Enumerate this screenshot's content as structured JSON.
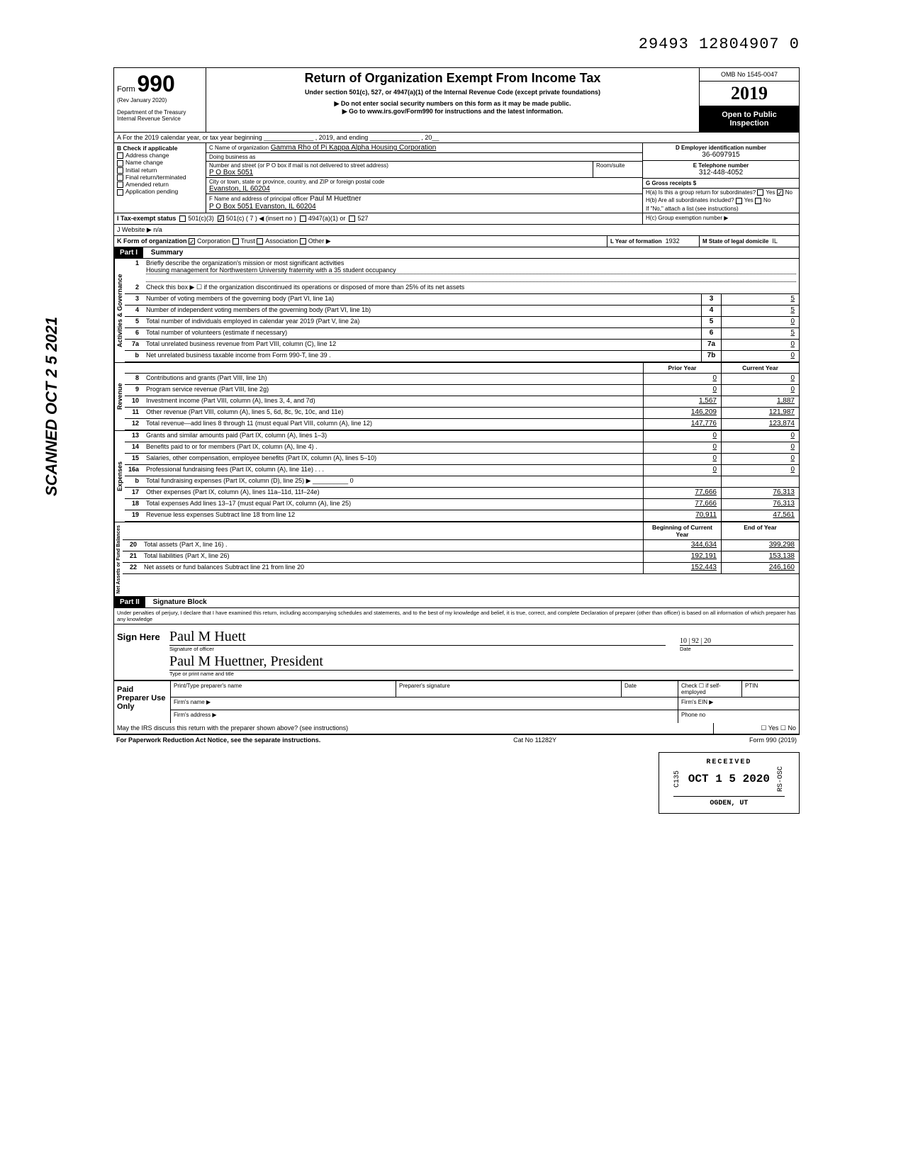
{
  "top_stamp": "29493 12804907  0",
  "scanned": "SCANNED OCT 2 5 2021",
  "header": {
    "form_word": "Form",
    "form_num": "990",
    "rev": "(Rev  January 2020)",
    "dept": "Department of the Treasury",
    "irs": "Internal Revenue Service",
    "title": "Return of Organization Exempt From Income Tax",
    "sub1": "Under section 501(c), 527, or 4947(a)(1) of the Internal Revenue Code (except private foundations)",
    "sub2": "▶ Do not enter social security numbers on this form as it may be made public.",
    "sub3": "▶ Go to www.irs.gov/Form990 for instructions and the latest information.",
    "omb": "OMB No 1545-0047",
    "year": "2019",
    "open": "Open to Public Inspection"
  },
  "lineA": "A   For the 2019 calendar year, or tax year beginning ______________ , 2019, and ending ______________ , 20__",
  "boxB": {
    "label": "B   Check if applicable",
    "items": [
      "Address change",
      "Name change",
      "Initial return",
      "Final return/terminated",
      "Amended return",
      "Application pending"
    ]
  },
  "boxC": {
    "c_lbl": "C Name of organization",
    "c_val": "Gamma Rho of Pi Kappa Alpha Housing Corporation",
    "dba_lbl": "Doing business as",
    "street_lbl": "Number and street (or P O  box if mail is not delivered to street address)",
    "street_val": "P O  Box 5051",
    "room_lbl": "Room/suite",
    "city_lbl": "City or town, state or province, country, and ZIP or foreign postal code",
    "city_val": "Evanston, IL 60204",
    "f_lbl": "F Name and address of principal officer",
    "f_name": "Paul M Huettner",
    "f_addr": "P O  Box 5051 Evanston, IL 60204"
  },
  "boxD": {
    "lbl": "D Employer identification number",
    "val": "36-6097915"
  },
  "boxE": {
    "lbl": "E Telephone number",
    "val": "312-448-4052"
  },
  "boxG": {
    "lbl": "G Gross receipts $",
    "val": ""
  },
  "boxH": {
    "a": "H(a) Is this a group return for subordinates?",
    "b": "H(b) Are all subordinates included?",
    "b2": "If \"No,\" attach a list (see instructions)",
    "c": "H(c) Group exemption number ▶"
  },
  "lineI": {
    "lbl": "I       Tax-exempt status",
    "opts": [
      "501(c)(3)",
      "501(c) (   7   ) ◀ (insert no )",
      "4947(a)(1) or",
      "527"
    ]
  },
  "lineJ": "J       Website ▶  n/a",
  "lineK": {
    "lbl": "K    Form of organization",
    "opts": [
      "Corporation",
      "Trust",
      "Association",
      "Other ▶"
    ],
    "l_lbl": "L Year of formation",
    "l_val": "1932",
    "m_lbl": "M State of legal domicile",
    "m_val": "IL"
  },
  "part1": {
    "hdr": "Part I",
    "title": "Summary",
    "activities_label": "Activities & Governance",
    "revenue_label": "Revenue",
    "expenses_label": "Expenses",
    "netassets_label": "Net Assets or Fund Balances",
    "line1_lbl": "Briefly describe the organization's mission or most significant activities",
    "line1_val": "Housing management for Northwestern University fraternity with a 35 student occupancy",
    "line2": "Check this box ▶ ☐ if the organization discontinued its operations or disposed of more than 25% of its net assets",
    "rows_gov": [
      {
        "n": "3",
        "t": "Number of voting members of the governing body (Part VI, line 1a)",
        "box": "3",
        "v": "5"
      },
      {
        "n": "4",
        "t": "Number of independent voting members of the governing body (Part VI, line 1b)",
        "box": "4",
        "v": "5"
      },
      {
        "n": "5",
        "t": "Total number of individuals employed in calendar year 2019 (Part V, line 2a)",
        "box": "5",
        "v": "0"
      },
      {
        "n": "6",
        "t": "Total number of volunteers (estimate if necessary)",
        "box": "6",
        "v": "5"
      },
      {
        "n": "7a",
        "t": "Total unrelated business revenue from Part VIII, column (C), line 12",
        "box": "7a",
        "v": "0"
      },
      {
        "n": "b",
        "t": "Net unrelated business taxable income from Form 990-T, line 39  .",
        "box": "7b",
        "v": "0"
      }
    ],
    "col_prior": "Prior Year",
    "col_current": "Current Year",
    "rows_rev": [
      {
        "n": "8",
        "t": "Contributions and grants (Part VIII, line 1h)",
        "p": "0",
        "c": "0"
      },
      {
        "n": "9",
        "t": "Program service revenue (Part VIII, line 2g)",
        "p": "0",
        "c": "0"
      },
      {
        "n": "10",
        "t": "Investment income (Part VIII, column (A), lines 3, 4, and 7d)",
        "p": "1,567",
        "c": "1,887"
      },
      {
        "n": "11",
        "t": "Other revenue (Part VIII, column (A), lines 5, 6d, 8c, 9c, 10c, and 11e)",
        "p": "146,209",
        "c": "121,987"
      },
      {
        "n": "12",
        "t": "Total revenue—add lines 8 through 11 (must equal Part VIII, column (A), line 12)",
        "p": "147,776",
        "c": "123,874"
      }
    ],
    "rows_exp": [
      {
        "n": "13",
        "t": "Grants and similar amounts paid (Part IX, column (A), lines 1–3)",
        "p": "0",
        "c": "0"
      },
      {
        "n": "14",
        "t": "Benefits paid to or for members (Part IX, column (A), line 4)  .",
        "p": "0",
        "c": "0"
      },
      {
        "n": "15",
        "t": "Salaries, other compensation, employee benefits (Part IX, column (A), lines 5–10)",
        "p": "0",
        "c": "0"
      },
      {
        "n": "16a",
        "t": "Professional fundraising fees (Part IX, column (A),  line 11e)  .   .   .",
        "p": "0",
        "c": "0"
      },
      {
        "n": "b",
        "t": "Total fundraising expenses (Part IX, column (D), line 25) ▶  __________ 0",
        "p": "",
        "c": ""
      },
      {
        "n": "17",
        "t": "Other expenses (Part IX, column (A), lines 11a–11d, 11f–24e)",
        "p": "77,666",
        "c": "76,313"
      },
      {
        "n": "18",
        "t": "Total expenses  Add lines 13–17 (must equal Part IX, column (A), line 25)",
        "p": "77,666",
        "c": "76,313"
      },
      {
        "n": "19",
        "t": "Revenue less expenses  Subtract line 18 from line 12",
        "p": "70,911",
        "c": "47,561"
      }
    ],
    "col_begin": "Beginning of Current Year",
    "col_end": "End of Year",
    "rows_net": [
      {
        "n": "20",
        "t": "Total assets (Part X, line 16)    .",
        "p": "344,634",
        "c": "399,298"
      },
      {
        "n": "21",
        "t": "Total liabilities (Part X, line 26)",
        "p": "192,191",
        "c": "153,138"
      },
      {
        "n": "22",
        "t": "Net assets or fund balances  Subtract line 21 from line 20",
        "p": "152,443",
        "c": "246,160"
      }
    ]
  },
  "part2": {
    "hdr": "Part II",
    "title": "Signature Block",
    "penalty": "Under penalties of perjury, I declare that I have examined this return, including accompanying schedules and statements, and to the best of my knowledge  and belief, it is true, correct, and complete  Declaration of preparer (other than officer) is based on all information of which preparer has any knowledge",
    "sign_here": "Sign Here",
    "sig_officer_lbl": "Signature of officer",
    "sig_date_lbl": "Date",
    "sig_date_val": "10 | 92 | 20",
    "sig_name_lbl": "Type or print name and title",
    "sig_name_val": "Paul M Huettner, President",
    "paid": "Paid Preparer Use Only",
    "prep_name": "Print/Type preparer's name",
    "prep_sig": "Preparer's signature",
    "prep_date": "Date",
    "prep_check": "Check ☐ if self-employed",
    "ptin": "PTIN",
    "firm_name": "Firm's name   ▶",
    "firm_ein": "Firm's EIN ▶",
    "firm_addr": "Firm's address ▶",
    "phone": "Phone no",
    "discuss": "May the IRS discuss this return with the preparer shown above? (see instructions)",
    "discuss_yn": "☐ Yes  ☐ No"
  },
  "footer": {
    "pra": "For Paperwork Reduction Act Notice, see the separate instructions.",
    "cat": "Cat  No  11282Y",
    "form": "Form 990 (2019)"
  },
  "received": {
    "top": "RECEIVED",
    "code": "C135",
    "date": "OCT 1 5 2020",
    "side": "RS-OSC",
    "loc": "OGDEN, UT"
  }
}
